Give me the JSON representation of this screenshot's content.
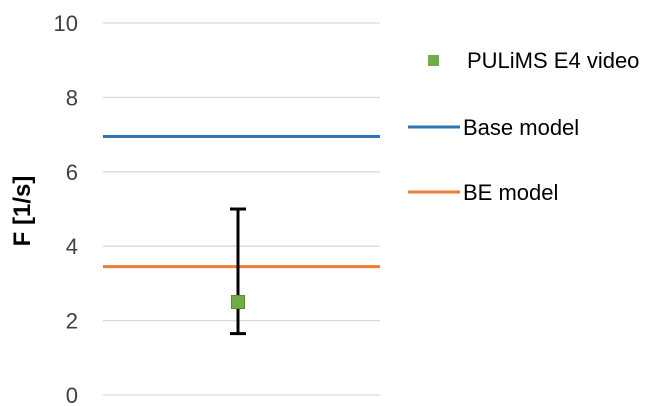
{
  "chart_data": {
    "type": "scatter",
    "title": "",
    "xlabel": "",
    "ylabel": "F [1/s]",
    "ylim": [
      0,
      10
    ],
    "yticks": [
      "0",
      "2",
      "4",
      "6",
      "8",
      "10"
    ],
    "grid": true,
    "legend_position": "right",
    "series": [
      {
        "name": "PULiMS E4 video",
        "kind": "point",
        "color": "#70ad47",
        "y": 2.5,
        "error_low": 1.65,
        "error_high": 5.0
      },
      {
        "name": "Base model",
        "kind": "hline",
        "color": "#2e75b6",
        "y": 6.95
      },
      {
        "name": "BE model",
        "kind": "hline",
        "color": "#ed7d31",
        "y": 3.45
      }
    ]
  }
}
